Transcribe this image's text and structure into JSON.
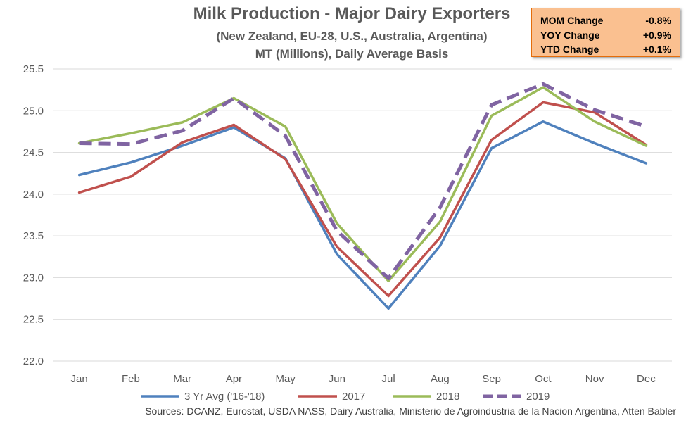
{
  "title": "Milk Production - Major Dairy Exporters",
  "subtitle1": "(New Zealand, EU-28, U.S., Australia,  Argentina)",
  "subtitle2": "MT (Millions), Daily Average Basis",
  "stats": [
    {
      "label": "MOM Change",
      "value": "-0.8%"
    },
    {
      "label": "YOY Change",
      "value": "+0.9%"
    },
    {
      "label": "YTD Change",
      "value": "+0.1%"
    }
  ],
  "source": "Sources: DCANZ, Eurostat, USDA NASS, Dairy Australia, Ministerio de Agroindustria de la Nacion Argentina, Atten Babler",
  "colors": {
    "avg": "#4f81bd",
    "y2017": "#c0504d",
    "y2018": "#9bbb59",
    "y2019": "#8064a2",
    "grid": "#d9d9d9"
  },
  "chart_data": {
    "type": "line",
    "categories": [
      "Jan",
      "Feb",
      "Mar",
      "Apr",
      "May",
      "Jun",
      "Jul",
      "Aug",
      "Sep",
      "Oct",
      "Nov",
      "Dec"
    ],
    "ylim": [
      22.0,
      25.5
    ],
    "yticks": [
      "22.0",
      "22.5",
      "23.0",
      "23.5",
      "24.0",
      "24.5",
      "25.0",
      "25.5"
    ],
    "grid": true,
    "legend_position": "bottom",
    "series": [
      {
        "name": "3 Yr Avg ('16-'18)",
        "color": "#4f81bd",
        "dashed": false,
        "values": [
          24.23,
          24.38,
          24.58,
          24.8,
          24.43,
          23.28,
          22.63,
          23.38,
          24.55,
          24.87,
          24.61,
          24.37
        ]
      },
      {
        "name": "2017",
        "color": "#c0504d",
        "dashed": false,
        "values": [
          24.02,
          24.21,
          24.62,
          24.83,
          24.42,
          23.37,
          22.78,
          23.48,
          24.65,
          25.1,
          24.98,
          24.59
        ]
      },
      {
        "name": "2018",
        "color": "#9bbb59",
        "dashed": false,
        "values": [
          24.61,
          24.73,
          24.86,
          25.15,
          24.81,
          23.65,
          22.96,
          23.67,
          24.94,
          25.28,
          24.87,
          24.58
        ]
      },
      {
        "name": "2019",
        "color": "#8064a2",
        "dashed": true,
        "values": [
          24.61,
          24.6,
          24.76,
          25.15,
          24.7,
          23.56,
          22.99,
          23.84,
          25.07,
          25.32,
          25.01,
          24.81
        ]
      }
    ]
  }
}
